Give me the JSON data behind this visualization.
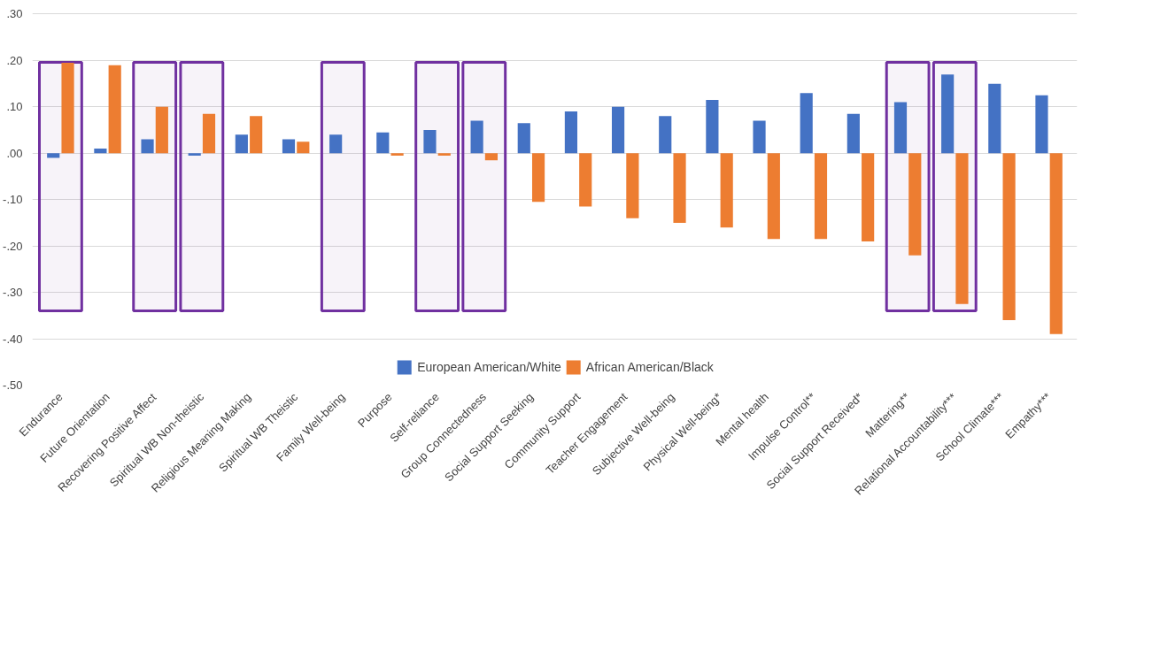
{
  "chart_data": {
    "type": "bar",
    "categories": [
      "Endurance",
      "Future Orientation",
      "Recovering Positive Affect",
      "Spiritual WB Non-theistic",
      "Religious Meaning Making",
      "Spiritual WB Theistic",
      "Family Well-being",
      "Purpose",
      "Self-reliance",
      "Group Connectedness",
      "Social Support Seeking",
      "Community Support",
      "Teacher Engagement",
      "Subjective Well-being",
      "Physical Well-being*",
      "Mental health",
      "Impulse Control**",
      "Social Support Received*",
      "Mattering**",
      "Relational Accountability***",
      "School Climate***",
      "Empathy***"
    ],
    "series": [
      {
        "name": "European American/White",
        "color": "#4472c4",
        "values": [
          -0.01,
          0.01,
          0.03,
          -0.005,
          0.04,
          0.03,
          0.04,
          0.045,
          0.05,
          0.07,
          0.065,
          0.09,
          0.1,
          0.08,
          0.115,
          0.07,
          0.13,
          0.085,
          0.11,
          0.17,
          0.15,
          0.125
        ]
      },
      {
        "name": "African American/Black",
        "color": "#ed7d31",
        "values": [
          0.195,
          0.19,
          0.1,
          0.085,
          0.08,
          0.025,
          0.0,
          -0.005,
          -0.005,
          -0.015,
          -0.105,
          -0.115,
          -0.14,
          -0.15,
          -0.16,
          -0.185,
          -0.185,
          -0.19,
          -0.22,
          -0.325,
          -0.36,
          -0.39
        ]
      }
    ],
    "ylim": [
      -0.5,
      0.3
    ],
    "yticks": [
      {
        "value": 0.3,
        "label": ".30"
      },
      {
        "value": 0.2,
        "label": ".20"
      },
      {
        "value": 0.1,
        "label": ".10"
      },
      {
        "value": 0,
        "label": ".00"
      },
      {
        "value": -0.1,
        "label": "-.10"
      },
      {
        "value": -0.2,
        "label": "-.20"
      },
      {
        "value": -0.3,
        "label": "-.30"
      },
      {
        "value": -0.4,
        "label": "-.40"
      },
      {
        "value": -0.5,
        "label": "-.50"
      }
    ],
    "grid": "y",
    "legend": "bottom",
    "bands": [
      {
        "axis": "x",
        "from": "Endurance",
        "to": "Endurance",
        "color": "#7030a0"
      },
      {
        "axis": "x",
        "from": "Recovering Positive Affect",
        "to": "Recovering Positive Affect",
        "color": "#7030a0"
      },
      {
        "axis": "x",
        "from": "Spiritual WB Non-theistic",
        "to": "Spiritual WB Non-theistic",
        "color": "#7030a0"
      },
      {
        "axis": "x",
        "from": "Family Well-being",
        "to": "Family Well-being",
        "color": "#7030a0"
      },
      {
        "axis": "x",
        "from": "Self-reliance",
        "to": "Self-reliance",
        "color": "#7030a0"
      },
      {
        "axis": "x",
        "from": "Group Connectedness",
        "to": "Group Connectedness",
        "color": "#7030a0"
      },
      {
        "axis": "x",
        "from": "Mattering**",
        "to": "Mattering**",
        "color": "#7030a0"
      },
      {
        "axis": "x",
        "from": "Relational Accountability***",
        "to": "Relational Accountability***",
        "color": "#7030a0"
      }
    ]
  }
}
